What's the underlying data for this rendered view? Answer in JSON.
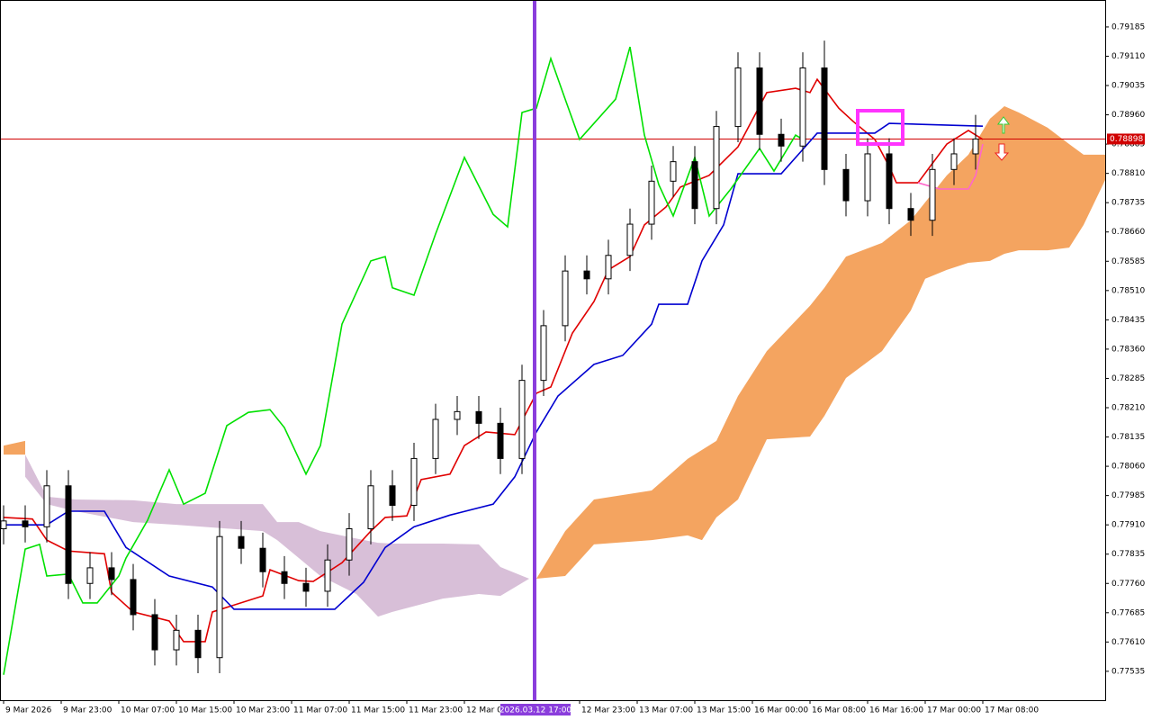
{
  "chart_data": {
    "type": "candlestick",
    "xlim": [
      -0.5,
      153
    ],
    "ylim": [
      0.77461,
      0.79254
    ],
    "xticks": [
      {
        "value": 0,
        "label": "9 Mar 2026"
      },
      {
        "value": 8,
        "label": "9 Mar 23:00"
      },
      {
        "value": 16,
        "label": "10 Mar 07:00"
      },
      {
        "value": 24,
        "label": "10 Mar 15:00"
      },
      {
        "value": 32,
        "label": "10 Mar 23:00"
      },
      {
        "value": 40,
        "label": "11 Mar 07:00"
      },
      {
        "value": 48,
        "label": "11 Mar 15:00"
      },
      {
        "value": 56,
        "label": "11 Mar 23:00"
      },
      {
        "value": 64,
        "label": "12 Mar 07:00"
      },
      {
        "value": 80,
        "label": "12 Mar 23:00"
      },
      {
        "value": 88,
        "label": "13 Mar 07:00"
      },
      {
        "value": 96,
        "label": "13 Mar 15:00"
      },
      {
        "value": 104,
        "label": "16 Mar 00:00"
      },
      {
        "value": 112,
        "label": "16 Mar 08:00"
      },
      {
        "value": 120,
        "label": "16 Mar 16:00"
      },
      {
        "value": 128,
        "label": "17 Mar 00:00"
      },
      {
        "value": 136,
        "label": "17 Mar 08:00"
      }
    ],
    "yticks": [
      0.79185,
      {
        "value": 0.7911,
        "label": "0.79110"
      },
      0.79035,
      {
        "value": 0.7896,
        "label": "0.78960"
      },
      0.78885,
      {
        "value": 0.7881,
        "label": "0.78810"
      },
      0.78735,
      {
        "value": 0.7866,
        "label": "0.78660"
      },
      0.78585,
      {
        "value": 0.7851,
        "label": "0.78510"
      },
      0.78435,
      {
        "value": 0.7836,
        "label": "0.78360"
      },
      0.78285,
      {
        "value": 0.7821,
        "label": "0.78210"
      },
      0.78135,
      {
        "value": 0.7806,
        "label": "0.78060"
      },
      0.77985,
      {
        "value": 0.7791,
        "label": "0.77910"
      },
      0.77835,
      {
        "value": 0.7776,
        "label": "0.77760"
      },
      0.77685,
      {
        "value": 0.7761,
        "label": "0.77610"
      },
      0.77535
    ],
    "candles": {
      "x": [
        0,
        3,
        6,
        9,
        12,
        15,
        18,
        21,
        24,
        27,
        30,
        33,
        36,
        39,
        42,
        45,
        48,
        51,
        54,
        57,
        60,
        63,
        66,
        69,
        72,
        75,
        78,
        81,
        84,
        87,
        90,
        93,
        96,
        99,
        102,
        105,
        108,
        111,
        114,
        117,
        120,
        123,
        126,
        129,
        132,
        135
      ],
      "open": [
        0.779,
        0.7792,
        0.77905,
        0.7801,
        0.7776,
        0.778,
        0.7777,
        0.7768,
        0.7759,
        0.7764,
        0.7757,
        0.7788,
        0.7785,
        0.7779,
        0.7776,
        0.7774,
        0.7782,
        0.779,
        0.7801,
        0.7796,
        0.7808,
        0.7818,
        0.782,
        0.7817,
        0.7808,
        0.7828,
        0.7842,
        0.7856,
        0.7854,
        0.786,
        0.7868,
        0.7879,
        0.7884,
        0.7872,
        0.7893,
        0.7908,
        0.7891,
        0.7888,
        0.7908,
        0.7882,
        0.7874,
        0.7886,
        0.7872,
        0.7869,
        0.7882,
        0.7886
      ],
      "high": [
        0.7796,
        0.7796,
        0.7805,
        0.7805,
        0.7784,
        0.7784,
        0.7781,
        0.7772,
        0.7768,
        0.7768,
        0.7792,
        0.7792,
        0.7789,
        0.7783,
        0.778,
        0.7786,
        0.7794,
        0.7805,
        0.7805,
        0.7812,
        0.7822,
        0.7824,
        0.7824,
        0.7821,
        0.7832,
        0.7846,
        0.786,
        0.786,
        0.7864,
        0.7872,
        0.7883,
        0.7888,
        0.7888,
        0.7897,
        0.7912,
        0.7912,
        0.7895,
        0.7912,
        0.7915,
        0.7886,
        0.789,
        0.789,
        0.7876,
        0.7886,
        0.789,
        0.7896
      ],
      "low": [
        0.7786,
        0.77865,
        0.77865,
        0.7772,
        0.7772,
        0.7773,
        0.7764,
        0.7755,
        0.7755,
        0.7753,
        0.7753,
        0.7781,
        0.7775,
        0.7772,
        0.777,
        0.777,
        0.7778,
        0.7786,
        0.7792,
        0.7792,
        0.7804,
        0.7814,
        0.7813,
        0.7804,
        0.7804,
        0.7824,
        0.7838,
        0.785,
        0.785,
        0.7856,
        0.7864,
        0.7875,
        0.7868,
        0.7868,
        0.7889,
        0.7887,
        0.7884,
        0.7884,
        0.7878,
        0.787,
        0.787,
        0.7868,
        0.7865,
        0.7865,
        0.7878,
        0.7882
      ],
      "close": [
        0.7792,
        0.77905,
        0.7801,
        0.7776,
        0.778,
        0.7777,
        0.7768,
        0.7759,
        0.7764,
        0.7757,
        0.7788,
        0.7785,
        0.7779,
        0.7776,
        0.7774,
        0.7782,
        0.779,
        0.7801,
        0.7796,
        0.7808,
        0.7818,
        0.782,
        0.7817,
        0.7808,
        0.7828,
        0.7842,
        0.7856,
        0.7854,
        0.786,
        0.7868,
        0.7879,
        0.7884,
        0.7872,
        0.7893,
        0.7908,
        0.7891,
        0.7888,
        0.7908,
        0.7882,
        0.7874,
        0.7886,
        0.7872,
        0.7869,
        0.7882,
        0.7886,
        0.78898
      ]
    },
    "clouds": [
      {
        "color": "#f4a460",
        "x": [
          0,
          3
        ],
        "upper": [
          0.78113,
          0.78125
        ],
        "lower": [
          0.7809,
          0.7809
        ]
      },
      {
        "color": "#d8bfd8",
        "x": [
          3,
          6,
          10,
          18,
          24,
          36,
          38,
          41,
          44,
          49,
          52,
          54,
          61,
          66,
          69,
          73
        ],
        "upper": [
          0.7809,
          0.77982,
          0.77975,
          0.77973,
          0.77963,
          0.77963,
          0.77917,
          0.77917,
          0.77894,
          0.77875,
          0.77864,
          0.77862,
          0.77862,
          0.7786,
          0.77802,
          0.77772
        ],
        "lower": [
          0.78033,
          0.77963,
          0.77945,
          0.77917,
          0.7791,
          0.77894,
          0.77871,
          0.77825,
          0.77779,
          0.77733,
          0.77675,
          0.77687,
          0.77721,
          0.77733,
          0.77728,
          0.77772
        ]
      },
      {
        "color": "#f4a460",
        "x": [
          74,
          78,
          82,
          90,
          95,
          97,
          99,
          102,
          106,
          112,
          114,
          117,
          122,
          126,
          128,
          131,
          134,
          137,
          139,
          141,
          145,
          148,
          150,
          153
        ],
        "upper": [
          0.77772,
          0.77894,
          0.77975,
          0.77998,
          0.78079,
          0.78102,
          0.78125,
          0.7824,
          0.78355,
          0.78471,
          0.78517,
          0.78597,
          0.78632,
          0.7869,
          0.78736,
          0.78805,
          0.78858,
          0.7895,
          0.78982,
          0.78966,
          0.78927,
          0.78885,
          0.78858,
          0.78858
        ],
        "lower": [
          0.77772,
          0.77779,
          0.7786,
          0.77871,
          0.77883,
          0.77871,
          0.77929,
          0.77975,
          0.78129,
          0.78136,
          0.78189,
          0.78286,
          0.78355,
          0.78459,
          0.7854,
          0.78563,
          0.78581,
          0.78586,
          0.78604,
          0.78613,
          0.78613,
          0.7862,
          0.78678,
          0.78793
        ]
      }
    ],
    "series": [
      {
        "color": "#e00000",
        "x": [
          0,
          4,
          6,
          9,
          14,
          15,
          18,
          23,
          25,
          28,
          29,
          36,
          37,
          41,
          43,
          47,
          51,
          53,
          56,
          58,
          62,
          64,
          67,
          71,
          74,
          76,
          79,
          82,
          84,
          87,
          89,
          92,
          94,
          98,
          102,
          106,
          110,
          112,
          113,
          116,
          118,
          121,
          123,
          124,
          127,
          131,
          134,
          136
        ],
        "values": [
          0.77929,
          0.77925,
          0.77871,
          0.77843,
          0.77836,
          0.77737,
          0.77687,
          0.77664,
          0.77611,
          0.77611,
          0.77687,
          0.77728,
          0.77795,
          0.77767,
          0.77765,
          0.77813,
          0.77894,
          0.77929,
          0.77933,
          0.78026,
          0.7804,
          0.78113,
          0.78148,
          0.78141,
          0.78247,
          0.78263,
          0.78401,
          0.78482,
          0.78563,
          0.78597,
          0.78678,
          0.78724,
          0.78775,
          0.78805,
          0.78878,
          0.79017,
          0.79028,
          0.79017,
          0.79051,
          0.78977,
          0.78943,
          0.78897,
          0.78828,
          0.78786,
          0.78786,
          0.78885,
          0.7892,
          0.78897
        ]
      },
      {
        "color": "#0000d0",
        "x": [
          0,
          6,
          9,
          14,
          17,
          23,
          29,
          32,
          46,
          50,
          53,
          57,
          62,
          68,
          71,
          74,
          77,
          82,
          86,
          90,
          91,
          95,
          97,
          100,
          102,
          108,
          113,
          121,
          123,
          136
        ],
        "values": [
          0.7791,
          0.7791,
          0.77945,
          0.77945,
          0.77852,
          0.77779,
          0.77751,
          0.77694,
          0.77694,
          0.77763,
          0.77852,
          0.77905,
          0.77935,
          0.77963,
          0.78033,
          0.78148,
          0.7824,
          0.78321,
          0.78344,
          0.78424,
          0.78475,
          0.78475,
          0.78586,
          0.78678,
          0.78809,
          0.78809,
          0.78913,
          0.78913,
          0.78938,
          0.78931
        ]
      },
      {
        "color": "#00e000",
        "x": [
          0,
          3,
          5,
          6,
          9,
          11,
          13,
          16,
          17,
          20,
          23,
          25,
          28,
          31,
          34,
          37,
          39,
          42,
          44,
          47,
          51,
          53,
          54,
          57,
          60,
          64,
          68,
          70,
          72,
          74,
          76,
          78,
          80,
          85,
          87,
          89,
          91,
          93,
          96,
          98,
          101,
          105,
          107,
          110,
          111
        ],
        "values": [
          0.77526,
          0.77848,
          0.7786,
          0.77779,
          0.77784,
          0.7771,
          0.7771,
          0.77779,
          0.77825,
          0.77922,
          0.78051,
          0.77963,
          0.77991,
          0.78164,
          0.78198,
          0.78205,
          0.78159,
          0.7804,
          0.78113,
          0.78424,
          0.78586,
          0.78597,
          0.78517,
          0.78498,
          0.78655,
          0.78851,
          0.78705,
          0.78673,
          0.78966,
          0.78977,
          0.79104,
          0.79,
          0.78897,
          0.79,
          0.79134,
          0.78908,
          0.78781,
          0.78701,
          0.78851,
          0.78701,
          0.7877,
          0.78874,
          0.78816,
          0.78908,
          0.78897
        ]
      },
      {
        "color": "#ff66cc",
        "x": [
          127,
          130,
          134,
          135,
          136
        ],
        "values": [
          0.78786,
          0.7877,
          0.7877,
          0.78804,
          0.78885
        ]
      }
    ],
    "price_line": {
      "value": 0.78898,
      "color": "#d00000"
    },
    "marker": {
      "x": 73.75,
      "label": "2026.03.12 17:00",
      "color": "#8a3ddc"
    }
  }
}
